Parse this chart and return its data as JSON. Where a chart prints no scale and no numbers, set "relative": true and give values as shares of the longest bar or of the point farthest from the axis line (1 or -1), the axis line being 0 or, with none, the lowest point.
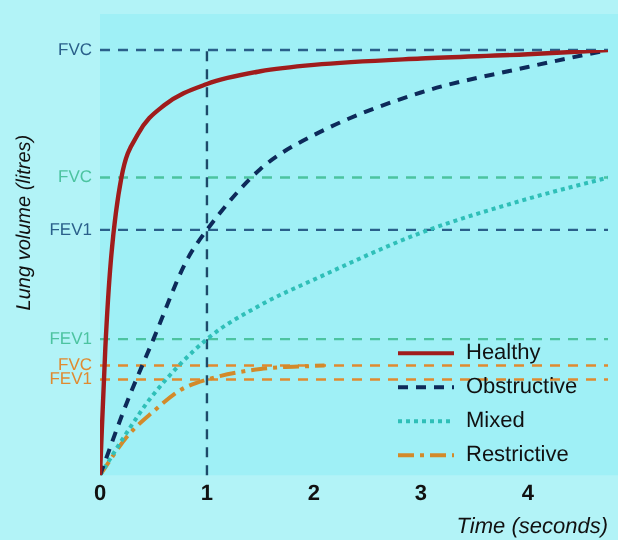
{
  "chart_data": {
    "type": "line",
    "relative": true,
    "xlabel": "Time (seconds)",
    "ylabel": "Lung volume (litres)",
    "xlim": [
      0,
      4.75
    ],
    "xticks": [
      0,
      1,
      2,
      3,
      4
    ],
    "grid": false,
    "legend": "bottom right",
    "marker": "none",
    "series": [
      {
        "name": "Healthy",
        "color": "#a01c1c",
        "line_style": "solid",
        "x": [
          0,
          0.05,
          0.1,
          0.2,
          0.35,
          0.6,
          1,
          1.5,
          2,
          3,
          4,
          4.75
        ],
        "values": [
          0,
          0.3,
          0.5,
          0.7,
          0.8,
          0.87,
          0.92,
          0.95,
          0.965,
          0.98,
          0.99,
          1
        ]
      },
      {
        "name": "Obstructive",
        "color": "#0d2a5a",
        "line_style": "dashed",
        "x": [
          0,
          0.25,
          0.5,
          0.8,
          1,
          1.5,
          2,
          3,
          4,
          4.75
        ],
        "values": [
          0,
          0.17,
          0.32,
          0.5,
          0.577,
          0.72,
          0.8,
          0.9,
          0.96,
          1
        ]
      },
      {
        "name": "Mixed",
        "color": "#2fbfb8",
        "line_style": "dotted",
        "x": [
          0,
          0.25,
          0.5,
          1,
          1.5,
          2,
          3,
          4,
          4.75
        ],
        "values": [
          0,
          0.1,
          0.19,
          0.32,
          0.4,
          0.46,
          0.57,
          0.65,
          0.7
        ]
      },
      {
        "name": "Restrictive",
        "color": "#d38a2a",
        "line_style": "dashdot",
        "x": [
          0,
          0.25,
          0.5,
          0.75,
          1,
          1.5,
          2,
          2.1
        ],
        "values": [
          0,
          0.09,
          0.15,
          0.2,
          0.225,
          0.25,
          0.257,
          0.258
        ]
      }
    ],
    "ref_lines": [
      {
        "axis": "y",
        "value": 1,
        "label": "FVC",
        "color": "#2a5f8a",
        "line_style": "dashed"
      },
      {
        "axis": "y",
        "value": 0.7,
        "label": "FVC",
        "color": "#4cc3a0",
        "line_style": "dashed"
      },
      {
        "axis": "y",
        "value": 0.577,
        "label": "FEV1",
        "color": "#2a5f8a",
        "line_style": "dashed"
      },
      {
        "axis": "y",
        "value": 0.32,
        "label": "FEV1",
        "color": "#4cc3a0",
        "line_style": "dashed"
      },
      {
        "axis": "y",
        "value": 0.258,
        "label": "FVC",
        "color": "#e08a30",
        "line_style": "dashed"
      },
      {
        "axis": "y",
        "value": 0.225,
        "label": "FEV1",
        "color": "#e08a30",
        "line_style": "dashed"
      },
      {
        "axis": "x",
        "value": 1,
        "label": null,
        "color": "#1d4a6a",
        "line_style": "dashed"
      }
    ]
  }
}
